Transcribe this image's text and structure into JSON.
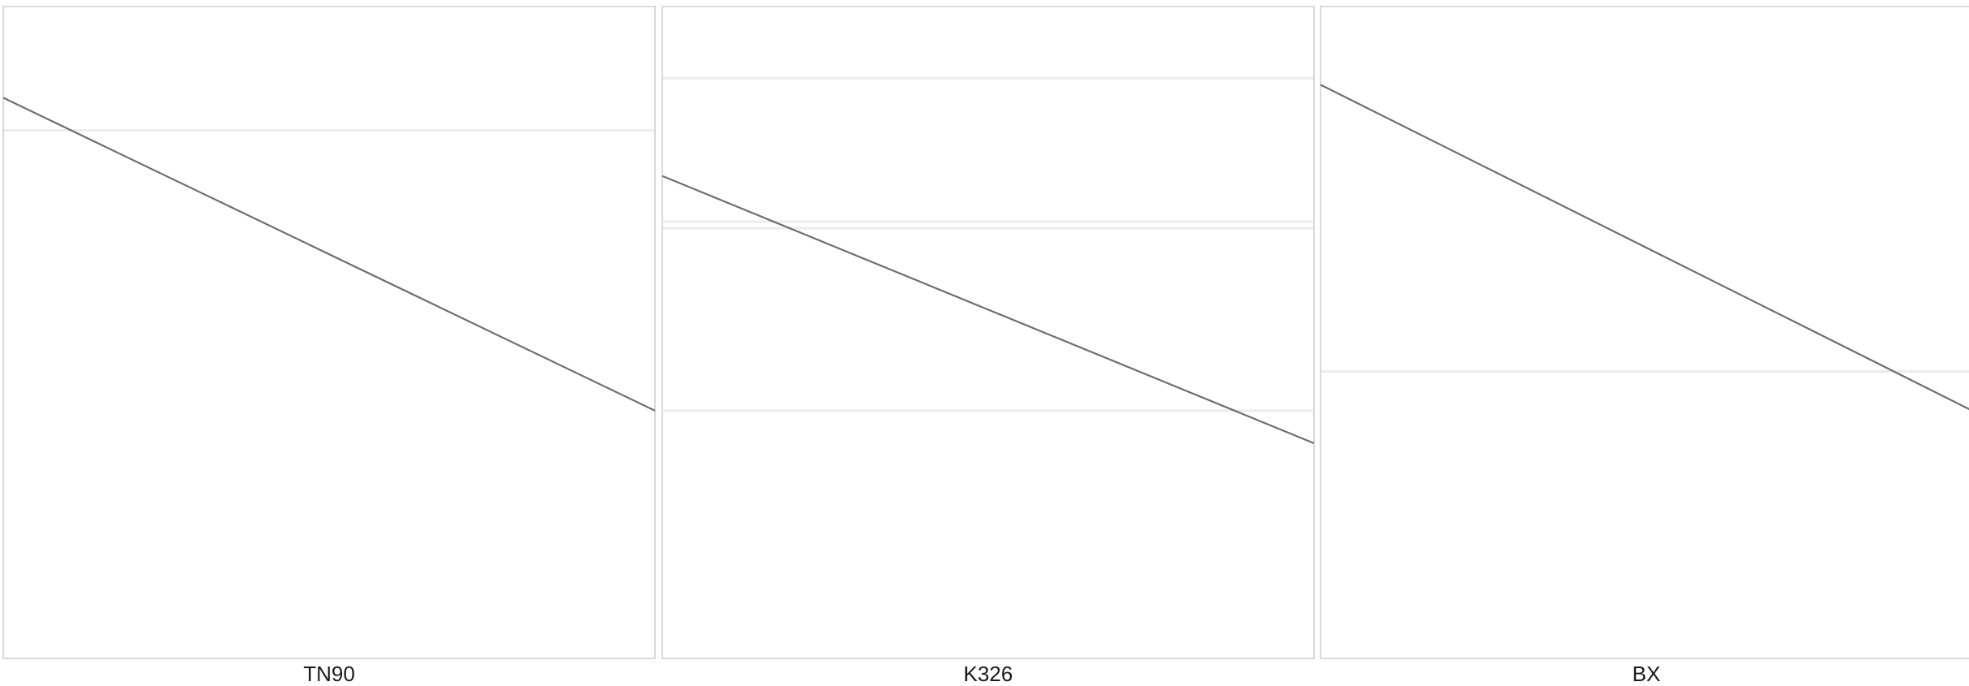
{
  "chart_data": [
    {
      "type": "line",
      "facet_label": "TN90",
      "line": {
        "x": [
          0,
          1
        ],
        "y": [
          -0.14,
          -0.62
        ]
      },
      "hlines": [
        -0.19
      ],
      "colors": {
        "line": "#6e6e6e",
        "hline": "#ececec",
        "frame": "#d9d9d9"
      }
    },
    {
      "type": "line",
      "facet_label": "K326",
      "line": {
        "x": [
          0,
          1
        ],
        "y": [
          -0.26,
          -0.67
        ]
      },
      "hlines": [
        -0.11,
        -0.33,
        -0.34,
        -0.62
      ],
      "colors": {
        "line": "#6e6e6e",
        "hline": "#ececec",
        "frame": "#d9d9d9"
      }
    },
    {
      "type": "line",
      "facet_label": "BX",
      "line": {
        "x": [
          0,
          1
        ],
        "y": [
          -0.12,
          -0.62
        ]
      },
      "hlines": [
        -0.56
      ],
      "colors": {
        "line": "#6e6e6e",
        "hline": "#ececec",
        "frame": "#d9d9d9"
      }
    }
  ]
}
